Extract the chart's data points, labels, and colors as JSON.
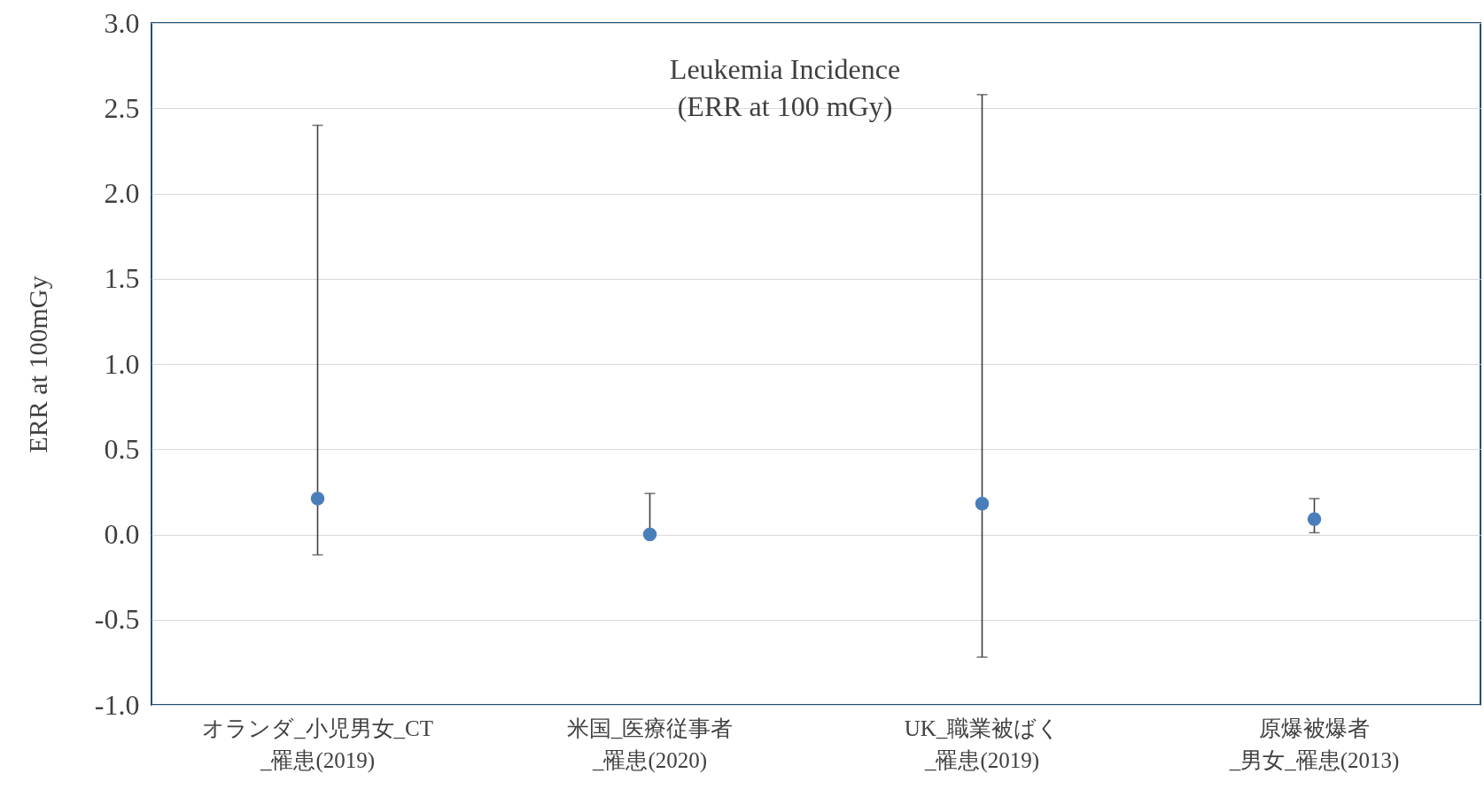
{
  "chart_data": {
    "type": "scatter",
    "title": "Leukemia Incidence\n(ERR at 100 mGy)",
    "ylabel": "ERR at 100mGy",
    "categories": [
      "オランダ_小児男女_CT\n_罹患(2019)",
      "米国_医療従事者\n_罹患(2020)",
      "UK_職業被ばく\n_罹患(2019)",
      "原爆被爆者\n_男女_罹患(2013)"
    ],
    "series": [
      {
        "color": "#4a7ebb",
        "values": [
          0.21,
          0.0,
          0.18,
          0.09
        ],
        "errors": [
          [
            -0.12,
            2.4
          ],
          [
            0.0,
            0.24
          ],
          [
            -0.72,
            2.58
          ],
          [
            0.01,
            0.21
          ]
        ]
      }
    ],
    "ylim": [
      -1.0,
      3.0
    ],
    "yticks": [
      {
        "value": -1,
        "label": "-1.0"
      },
      {
        "value": -0.5,
        "label": "-0.5"
      },
      {
        "value": 0,
        "label": "0.0"
      },
      {
        "value": 0.5,
        "label": "0.5"
      },
      {
        "value": 1,
        "label": "1.0"
      },
      {
        "value": 1.5,
        "label": "1.5"
      },
      {
        "value": 2,
        "label": "2.0"
      },
      {
        "value": 2.5,
        "label": "2.5"
      },
      {
        "value": 3,
        "label": "3.0"
      }
    ],
    "grid": "y",
    "marker": "circle"
  }
}
